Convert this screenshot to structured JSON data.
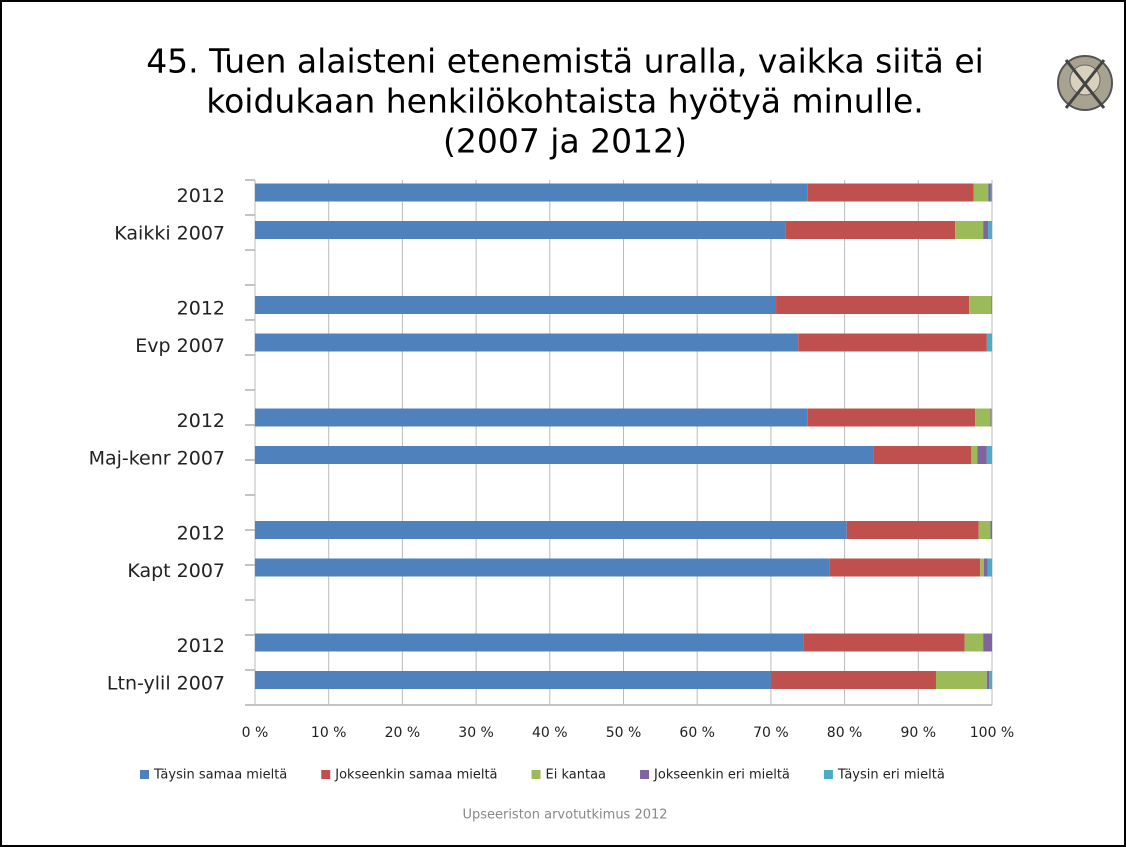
{
  "chart_data": {
    "type": "stacked-bar-horizontal",
    "title": [
      "45. Tuen alaisteni etenemistä uralla, vaikka siitä ei",
      "koidukaan henkilökohtaista hyötyä minulle.",
      "(2007 ja 2012)"
    ],
    "categories": [
      "2012",
      "Kaikki 2007",
      "2012",
      "Evp 2007",
      "2012",
      "Maj-kenr 2007",
      "2012",
      "Kapt 2007",
      "2012",
      "Ltn-ylil 2007"
    ],
    "series": [
      {
        "name": "Täysin samaa mieltä",
        "color": "#4f81bd",
        "values": [
          75,
          72,
          70.7,
          73.7,
          75,
          83.9,
          80.3,
          78,
          74.4,
          70
        ]
      },
      {
        "name": "Jokseenkin samaa mieltä",
        "color": "#c0504d",
        "values": [
          22.5,
          23,
          26.2,
          25.6,
          22.7,
          13.3,
          17.9,
          20.4,
          21.9,
          22.4
        ]
      },
      {
        "name": "Ei kantaa",
        "color": "#9bbb59",
        "values": [
          2,
          3.8,
          3,
          0,
          2.1,
          0.8,
          1.6,
          0.5,
          2.5,
          6.9
        ]
      },
      {
        "name": "Jokseenkin eri mieltä",
        "color": "#8064a2",
        "values": [
          0.3,
          0.7,
          0.1,
          0,
          0.1,
          1.3,
          0.2,
          0.5,
          1.2,
          0.3
        ]
      },
      {
        "name": "Täysin eri mieltä",
        "color": "#4bacc6",
        "values": [
          0.2,
          0.5,
          0,
          0.7,
          0.1,
          0.7,
          0,
          0.6,
          0,
          0.4
        ]
      }
    ],
    "xlim": [
      0,
      100
    ],
    "xticks": [
      {
        "value": 0,
        "label": "0 %"
      },
      {
        "value": 10,
        "label": "10 %"
      },
      {
        "value": 20,
        "label": "20 %"
      },
      {
        "value": 30,
        "label": "30 %"
      },
      {
        "value": 40,
        "label": "40 %"
      },
      {
        "value": 50,
        "label": "50 %"
      },
      {
        "value": 60,
        "label": "60 %"
      },
      {
        "value": 70,
        "label": "70 %"
      },
      {
        "value": 80,
        "label": "80 %"
      },
      {
        "value": 90,
        "label": "90 %"
      },
      {
        "value": 100,
        "label": "100 %"
      }
    ],
    "grid": true,
    "legend": "bottom",
    "source": "Upseeriston arvotutkimus 2012"
  }
}
